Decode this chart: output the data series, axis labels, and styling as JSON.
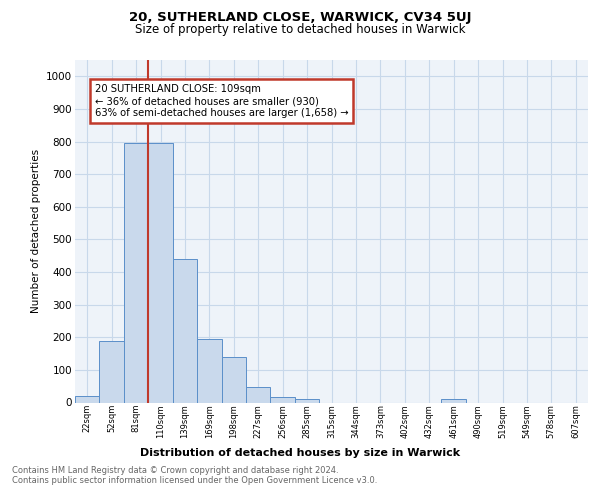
{
  "title1": "20, SUTHERLAND CLOSE, WARWICK, CV34 5UJ",
  "title2": "Size of property relative to detached houses in Warwick",
  "xlabel": "Distribution of detached houses by size in Warwick",
  "ylabel": "Number of detached properties",
  "bar_labels": [
    "22sqm",
    "52sqm",
    "81sqm",
    "110sqm",
    "139sqm",
    "169sqm",
    "198sqm",
    "227sqm",
    "256sqm",
    "285sqm",
    "315sqm",
    "344sqm",
    "373sqm",
    "402sqm",
    "432sqm",
    "461sqm",
    "490sqm",
    "519sqm",
    "549sqm",
    "578sqm",
    "607sqm"
  ],
  "bar_values": [
    20,
    190,
    795,
    795,
    440,
    195,
    140,
    48,
    18,
    12,
    0,
    0,
    0,
    0,
    0,
    10,
    0,
    0,
    0,
    0,
    0
  ],
  "bar_color": "#c9d9ec",
  "bar_edge_color": "#5b8fc9",
  "grid_color": "#c8d8ea",
  "background_color": "#eef3f9",
  "vline_color": "#c0392b",
  "annotation_text": "20 SUTHERLAND CLOSE: 109sqm\n← 36% of detached houses are smaller (930)\n63% of semi-detached houses are larger (1,658) →",
  "annotation_box_color": "#ffffff",
  "annotation_box_edge_color": "#c0392b",
  "footer_text": "Contains HM Land Registry data © Crown copyright and database right 2024.\nContains public sector information licensed under the Open Government Licence v3.0.",
  "ylim": [
    0,
    1050
  ],
  "yticks": [
    0,
    100,
    200,
    300,
    400,
    500,
    600,
    700,
    800,
    900,
    1000
  ]
}
